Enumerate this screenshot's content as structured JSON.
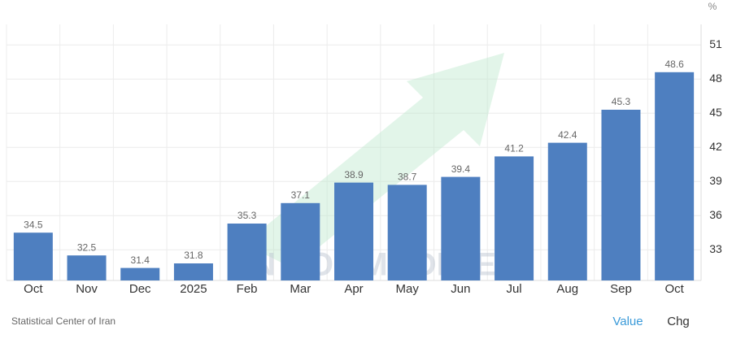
{
  "chart_data": {
    "type": "bar",
    "y_label": "%",
    "categories": [
      "Oct",
      "Nov",
      "Dec",
      "2025",
      "Feb",
      "Mar",
      "Apr",
      "May",
      "Jun",
      "Jul",
      "Aug",
      "Sep",
      "Oct"
    ],
    "values": [
      34.5,
      32.5,
      31.4,
      31.8,
      35.3,
      37.1,
      38.9,
      38.7,
      39.4,
      41.2,
      42.4,
      45.3,
      48.6
    ],
    "color": "#4e7fc0",
    "ylim": [
      30.3,
      52.8
    ],
    "yticks": [
      33,
      36,
      39,
      42,
      45,
      48,
      51
    ],
    "grid": true,
    "watermark": "VN COMMODITIES",
    "source": "Statistical Center of Iran",
    "buttons": [
      "Value",
      "Chg"
    ]
  }
}
